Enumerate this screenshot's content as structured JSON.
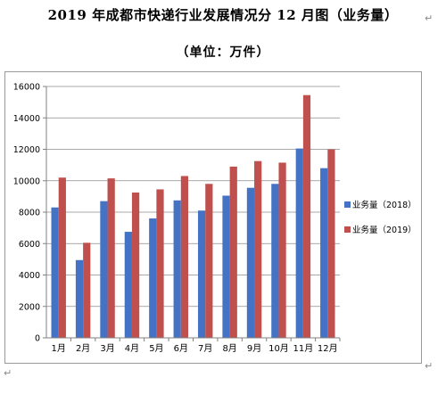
{
  "document": {
    "title": "2019 年成都市快递行业发展情况分 12 月图（业务量）",
    "subtitle": "（单位：万件）",
    "paragraph_mark": "↵"
  },
  "chart_data": {
    "type": "bar",
    "categories": [
      "1月",
      "2月",
      "3月",
      "4月",
      "5月",
      "6月",
      "7月",
      "8月",
      "9月",
      "10月",
      "11月",
      "12月"
    ],
    "series": [
      {
        "name": "业务量（2018）",
        "color": "#4472C4",
        "values": [
          8300,
          4950,
          8700,
          6750,
          7600,
          8750,
          8100,
          9050,
          9550,
          9800,
          12050,
          10800
        ]
      },
      {
        "name": "业务量（2019）",
        "color": "#C0504D",
        "values": [
          10200,
          6050,
          10150,
          9250,
          9450,
          10300,
          9800,
          10900,
          11250,
          11150,
          15450,
          12000
        ]
      }
    ],
    "ylim": [
      0,
      16000
    ],
    "yticks": [
      0,
      2000,
      4000,
      6000,
      8000,
      10000,
      12000,
      14000,
      16000
    ],
    "grid": true,
    "legend_position": "right"
  }
}
